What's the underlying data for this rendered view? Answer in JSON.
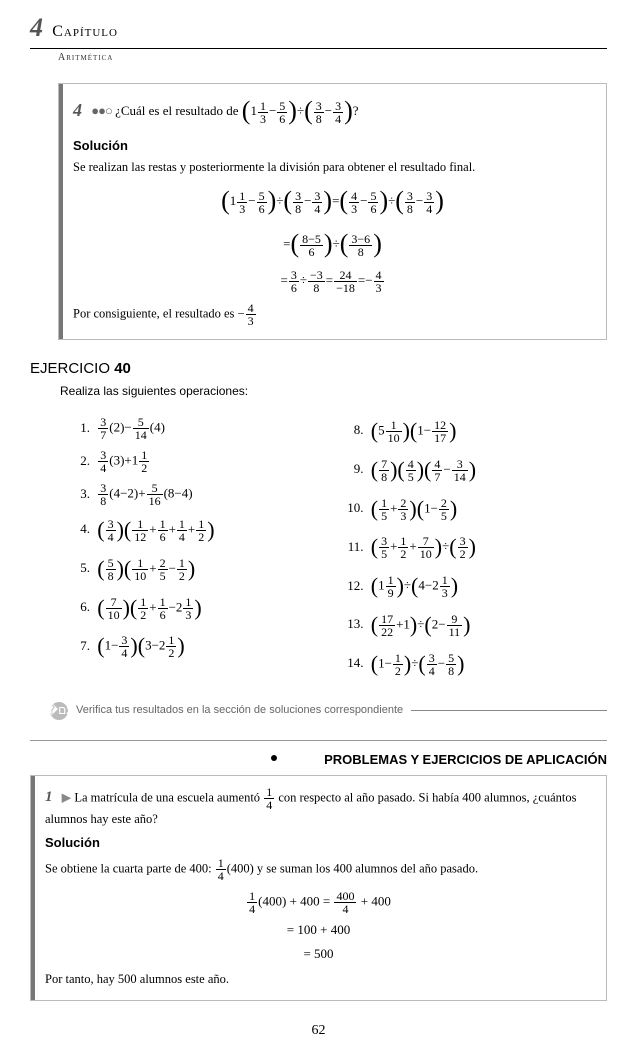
{
  "chapter": {
    "num": "4",
    "word": "Capítulo",
    "subject": "Aritmética"
  },
  "example": {
    "num": "4",
    "dots": "●●○",
    "question": "¿Cuál es el resultado de",
    "q_tail": "?",
    "sol_label": "Solución",
    "sol_text": "Se realizan las restas y posteriormente la división para obtener el resultado final.",
    "concl": "Por consiguiente, el resultado es",
    "result_num": "4",
    "result_den": "3",
    "result_sign": "−"
  },
  "exercise": {
    "title_a": "EJERCICIO ",
    "title_b": "40",
    "instruct": "Realiza las siguientes operaciones:"
  },
  "verify": {
    "text": "Verifica tus resultados en la sección de soluciones correspondiente"
  },
  "apps_header": "PROBLEMAS Y EJERCICIOS DE APLICACIÓN",
  "app": {
    "num": "1",
    "text_a": "La matrícula de una escuela aumentó ",
    "text_b": " con respecto al año pasado. Si había 400 alumnos, ¿cuántos alumnos hay este año?",
    "sol_label": "Solución",
    "sol_text_a": "Se obtiene la cuarta parte de 400: ",
    "sol_text_b": "(400) y se suman los 400 alumnos del año pasado.",
    "work1": "(400) + 400 =",
    "work1_rhs": " + 400",
    "work2": "= 100 + 400",
    "work3": "= 500",
    "concl": "Por tanto, hay 500 alumnos este año."
  },
  "page_num": "62",
  "fracs": {
    "q_whole": "1",
    "f13n": "1",
    "f13d": "3",
    "f56n": "5",
    "f56d": "6",
    "f38n": "3",
    "f38d": "8",
    "f34n": "3",
    "f34d": "4",
    "f43n": "4",
    "f43d": "3",
    "l1a": "8−5",
    "l1b": "6",
    "l1c": "3−6",
    "l1d": "8",
    "l2a": "3",
    "l2b": "6",
    "l2c": "−3",
    "l2d": "8",
    "l2e": "24",
    "l2f": "−18",
    "l2g": "4",
    "l2h": "3",
    "i1a": "3",
    "i1b": "7",
    "i1c": "5",
    "i1d": "14",
    "i2a": "3",
    "i2b": "4",
    "i2c": "1",
    "i2d": "2",
    "i3a": "3",
    "i3b": "8",
    "i3c": "5",
    "i3d": "16",
    "i4a": "3",
    "i4b": "4",
    "i4c": "1",
    "i4d": "12",
    "i4e": "1",
    "i4f": "6",
    "i4g": "1",
    "i4h": "4",
    "i4i": "1",
    "i4j": "2",
    "i5a": "5",
    "i5b": "8",
    "i5c": "1",
    "i5d": "10",
    "i5e": "2",
    "i5f": "5",
    "i5g": "1",
    "i5h": "2",
    "i6a": "7",
    "i6b": "10",
    "i6c": "1",
    "i6d": "2",
    "i6e": "1",
    "i6f": "6",
    "i6g": "1",
    "i6h": "3",
    "i7a": "3",
    "i7b": "4",
    "i7c": "1",
    "i7d": "2",
    "i8a": "1",
    "i8b": "10",
    "i8c": "12",
    "i8d": "17",
    "i9a": "7",
    "i9b": "8",
    "i9c": "4",
    "i9d": "5",
    "i9e": "4",
    "i9f": "7",
    "i9g": "3",
    "i9h": "14",
    "i10a": "1",
    "i10b": "5",
    "i10c": "2",
    "i10d": "3",
    "i10e": "2",
    "i10f": "5",
    "i11a": "3",
    "i11b": "5",
    "i11c": "1",
    "i11d": "2",
    "i11e": "7",
    "i11f": "10",
    "i11g": "3",
    "i11h": "2",
    "i12a": "1",
    "i12b": "9",
    "i12c": "1",
    "i12d": "3",
    "i13a": "17",
    "i13b": "22",
    "i13c": "9",
    "i13d": "11",
    "i14a": "1",
    "i14b": "2",
    "i14c": "3",
    "i14d": "4",
    "i14e": "5",
    "i14f": "8",
    "app1n": "1",
    "app1d": "4",
    "app2n": "400",
    "app2d": "4"
  }
}
